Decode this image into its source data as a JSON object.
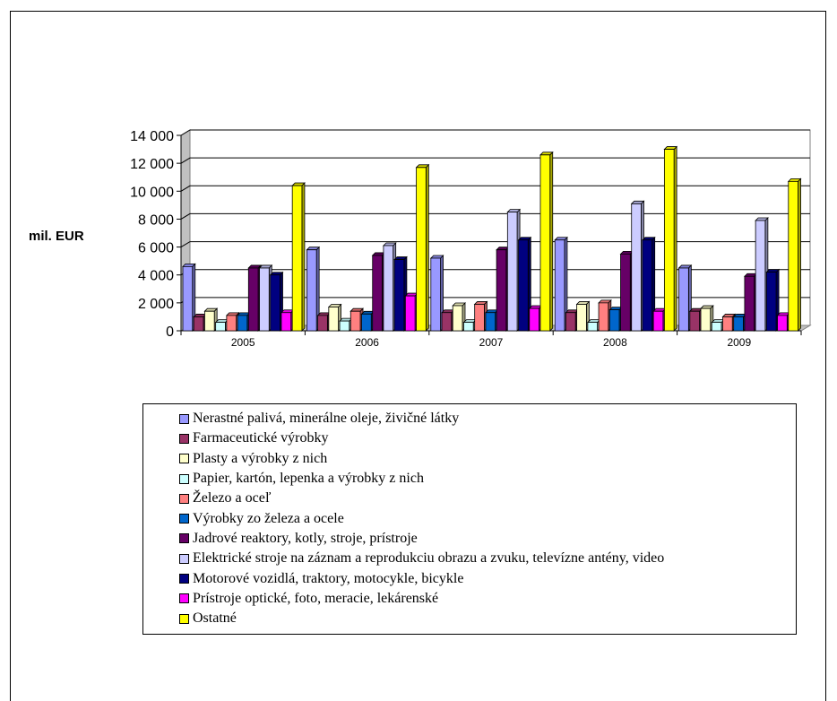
{
  "chart_data": {
    "type": "bar",
    "ylabel": "mil. EUR",
    "ylim": [
      0,
      14000
    ],
    "yticks": [
      "0",
      "2 000",
      "4 000",
      "6 000",
      "8 000",
      "10 000",
      "12 000",
      "14 000"
    ],
    "categories": [
      "2005",
      "2006",
      "2007",
      "2008",
      "2009"
    ],
    "grid": true,
    "legend_position": "bottom",
    "series": [
      {
        "name": "Nerastné palivá, minerálne oleje, živičné látky",
        "color": "#9999ff",
        "values": [
          4600,
          5800,
          5200,
          6500,
          4500
        ]
      },
      {
        "name": "Farmaceutické výrobky",
        "color": "#993366",
        "values": [
          1000,
          1100,
          1300,
          1300,
          1400
        ]
      },
      {
        "name": "Plasty a výrobky z nich",
        "color": "#ffffcc",
        "values": [
          1400,
          1700,
          1800,
          1900,
          1600
        ]
      },
      {
        "name": "Papier, kartón, lepenka a výrobky z nich",
        "color": "#ccffff",
        "values": [
          600,
          700,
          600,
          600,
          600
        ]
      },
      {
        "name": "Železo a oceľ",
        "color": "#ff8080",
        "values": [
          1100,
          1400,
          1900,
          2000,
          1000
        ]
      },
      {
        "name": "Výrobky zo železa a ocele",
        "color": "#0066cc",
        "values": [
          1100,
          1200,
          1300,
          1500,
          1000
        ]
      },
      {
        "name": "Jadrové reaktory, kotly, stroje, prístroje",
        "color": "#660066",
        "values": [
          4500,
          5400,
          5800,
          5500,
          3900
        ]
      },
      {
        "name": "Elektrické stroje na záznam a reprodukciu obrazu a zvuku, televízne antény, video",
        "color": "#ccccff",
        "values": [
          4500,
          6100,
          8500,
          9100,
          7900
        ]
      },
      {
        "name": "Motorové vozidlá, traktory, motocykle, bicykle",
        "color": "#000080",
        "values": [
          4000,
          5100,
          6500,
          6500,
          4200
        ]
      },
      {
        "name": "Prístroje optické, foto, meracie, lekárenské",
        "color": "#ff00ff",
        "values": [
          1300,
          2500,
          1600,
          1400,
          1100
        ]
      },
      {
        "name": "Ostatné",
        "color": "#ffff00",
        "values": [
          10400,
          11700,
          12600,
          13000,
          10700
        ]
      }
    ]
  }
}
